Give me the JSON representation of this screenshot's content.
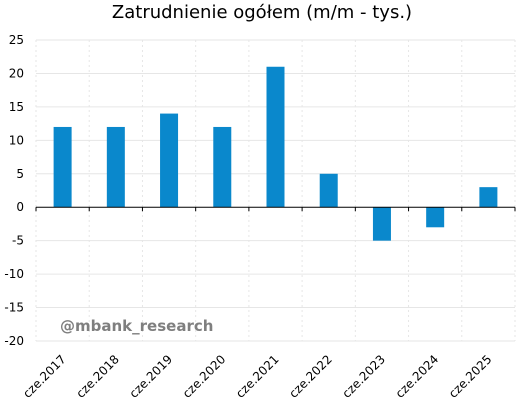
{
  "chart_data": {
    "type": "bar",
    "title": "Zatrudnienie ogółem (m/m - tys.)",
    "xlabel": "",
    "ylabel": "",
    "categories": [
      "cze.2017",
      "cze.2018",
      "cze.2019",
      "cze.2020",
      "cze.2021",
      "cze.2022",
      "cze.2023",
      "cze.2024",
      "cze.2025"
    ],
    "values": [
      12,
      12,
      14,
      12,
      21,
      5,
      -5,
      -3,
      3
    ],
    "ylim": [
      -20,
      25
    ],
    "yticks": [
      25,
      20,
      15,
      10,
      5,
      0,
      -5,
      -10,
      -15,
      -20
    ],
    "grid": true,
    "legend": "none",
    "bar_color": "#0A88CC",
    "grid_color": "#e6e6e6"
  },
  "watermark": "@mbank_research"
}
